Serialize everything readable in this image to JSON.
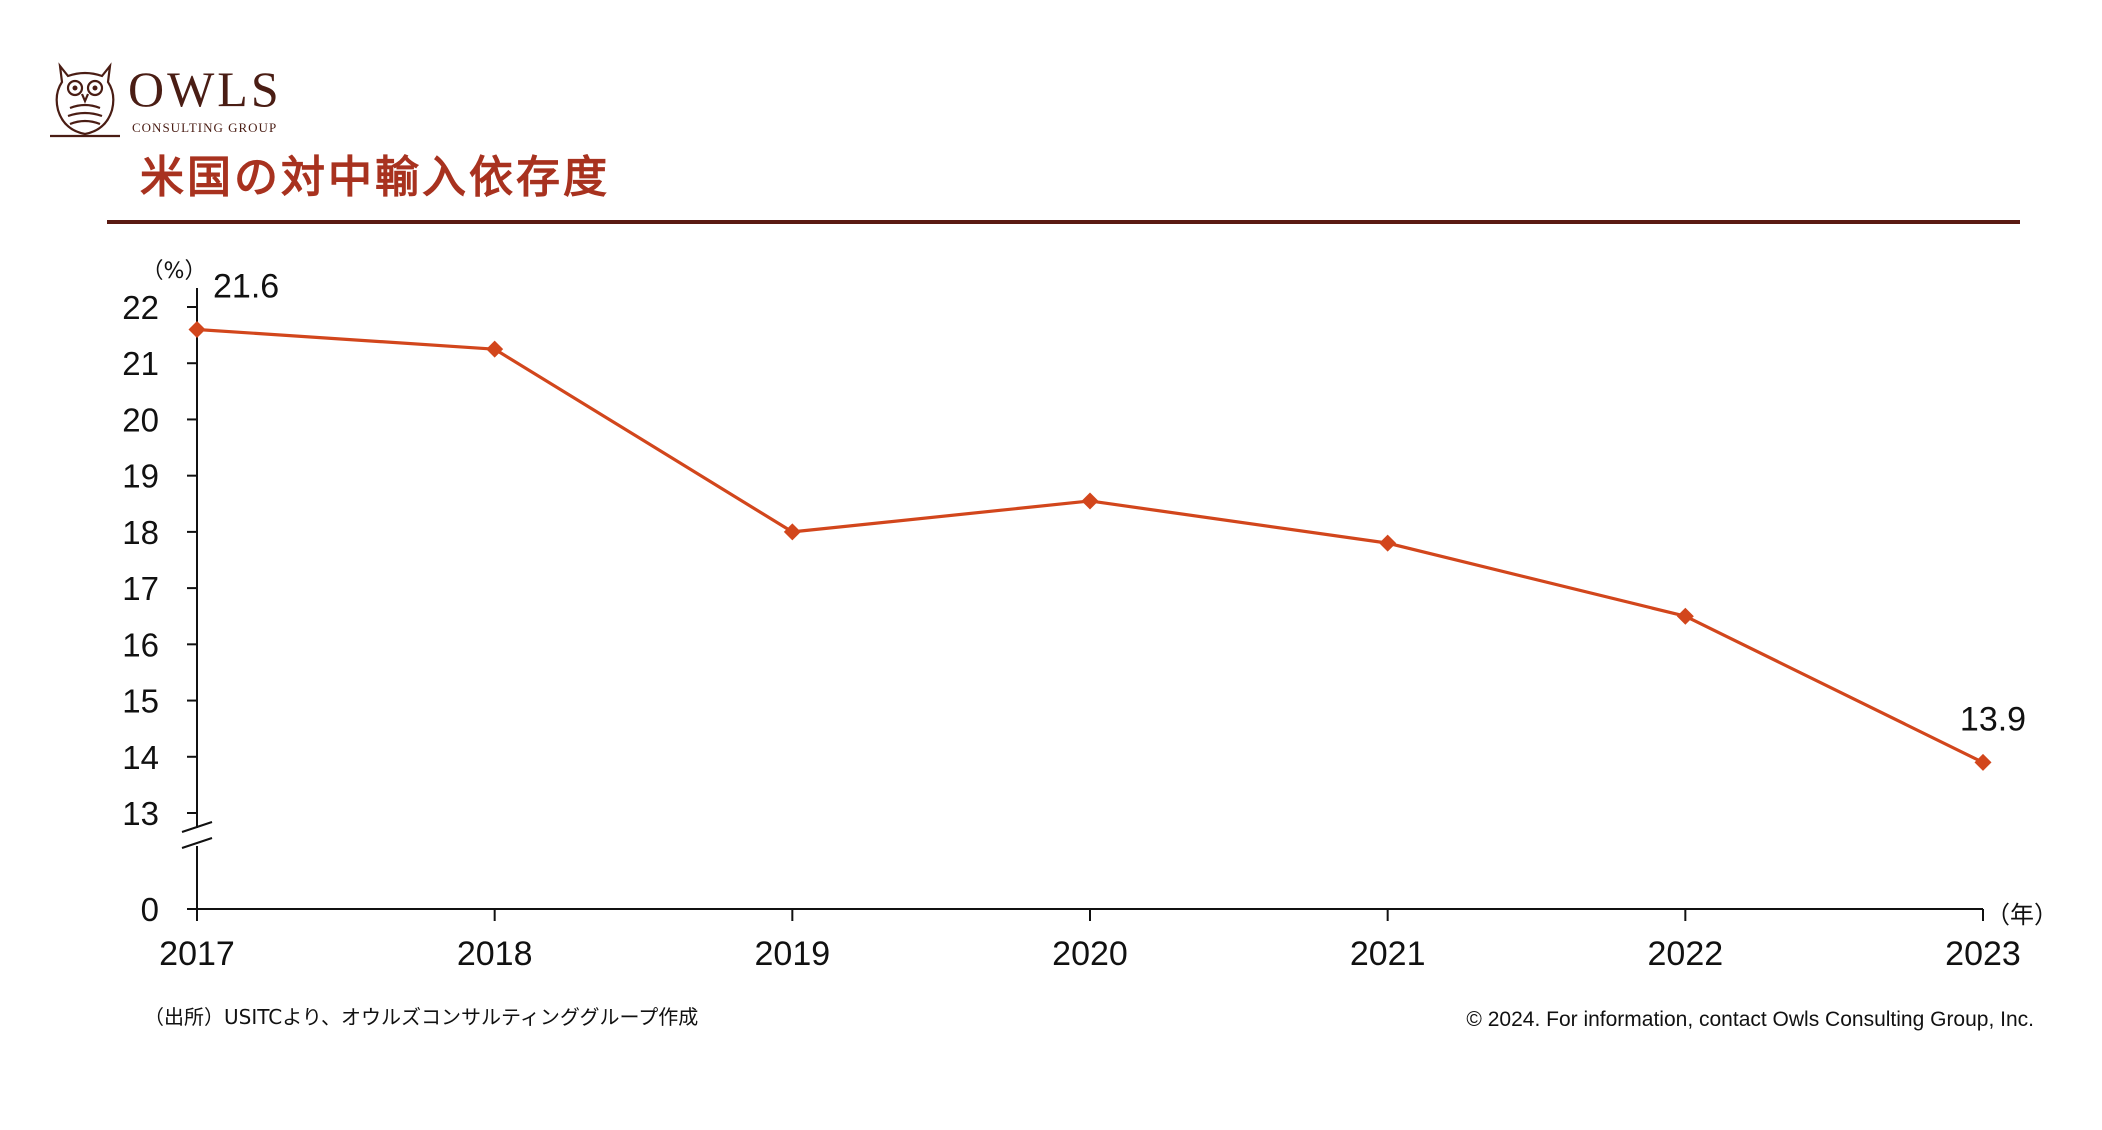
{
  "brand": {
    "name": "OWLS",
    "tagline": "CONSULTING GROUP",
    "logo_icon": "owl-icon",
    "color": "#4a1d14"
  },
  "title": "米国の対中輸入依存度",
  "colors": {
    "title": "#a8321f",
    "rule": "#5a1a12",
    "series": "#d2461c"
  },
  "chart_data": {
    "type": "line",
    "x": [
      "2017",
      "2018",
      "2019",
      "2020",
      "2021",
      "2022",
      "2023"
    ],
    "series": [
      {
        "values": [
          21.6,
          21.25,
          18.0,
          18.55,
          17.8,
          16.5,
          13.9
        ]
      }
    ],
    "data_labels": [
      {
        "index": 0,
        "text": "21.6"
      },
      {
        "index": 6,
        "text": "13.9"
      }
    ],
    "y_ticks": [
      "0",
      "13",
      "14",
      "15",
      "16",
      "17",
      "18",
      "19",
      "20",
      "21",
      "22"
    ],
    "y_axis_break": true,
    "ylim": [
      13,
      22
    ],
    "ylabel": "（%）",
    "xlabel": "（年）",
    "marker": "diamond",
    "grid": false,
    "legend": "none"
  },
  "footer": {
    "source": "（出所）USITCより、オウルズコンサルティンググループ作成",
    "copyright": "© 2024. For information, contact Owls Consulting Group, Inc."
  }
}
